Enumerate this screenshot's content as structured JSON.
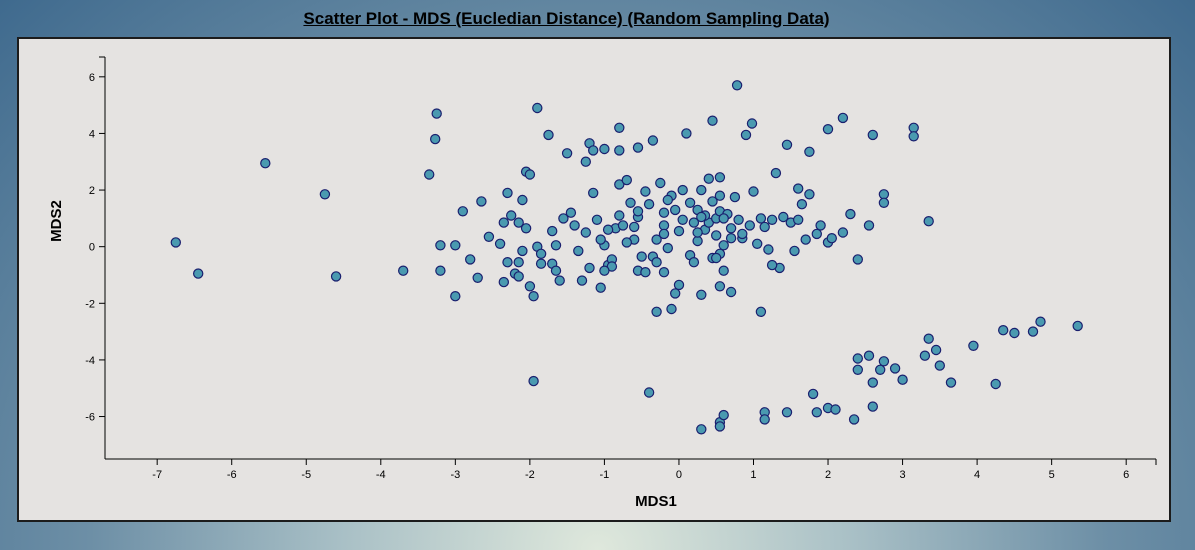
{
  "chart_data": {
    "type": "scatter",
    "title": "Scatter Plot - MDS (Eucledian Distance) (Random Sampling Data)",
    "xlabel": "MDS1",
    "ylabel": "MDS2",
    "xlim": [
      -7.7,
      6.4
    ],
    "ylim": [
      -7.5,
      6.7
    ],
    "xticks": [
      -7,
      -6,
      -5,
      -4,
      -3,
      -2,
      -1,
      0,
      1,
      2,
      3,
      4,
      5,
      6
    ],
    "yticks": [
      -6,
      -4,
      -2,
      0,
      2,
      4,
      6
    ],
    "grid": false,
    "marker_fill": "#4a9ab0",
    "marker_stroke": "#1a1f6e",
    "points": [
      [
        -6.75,
        0.15
      ],
      [
        -6.45,
        -0.95
      ],
      [
        -5.55,
        2.95
      ],
      [
        -4.75,
        1.85
      ],
      [
        -4.6,
        -1.05
      ],
      [
        -3.7,
        -0.85
      ],
      [
        -3.35,
        2.55
      ],
      [
        -3.25,
        4.7
      ],
      [
        -3.27,
        3.8
      ],
      [
        -3.2,
        0.05
      ],
      [
        -3.2,
        -0.85
      ],
      [
        -3.0,
        0.05
      ],
      [
        -3.0,
        -1.75
      ],
      [
        -2.9,
        1.25
      ],
      [
        -2.8,
        -0.45
      ],
      [
        -2.65,
        1.6
      ],
      [
        -2.7,
        -1.1
      ],
      [
        -2.55,
        0.35
      ],
      [
        -2.4,
        0.1
      ],
      [
        -2.35,
        0.85
      ],
      [
        -2.3,
        1.9
      ],
      [
        -2.25,
        1.1
      ],
      [
        -2.3,
        -0.55
      ],
      [
        -2.35,
        -1.25
      ],
      [
        -2.2,
        -0.95
      ],
      [
        -2.15,
        -0.55
      ],
      [
        -2.15,
        -1.05
      ],
      [
        -2.15,
        0.85
      ],
      [
        -2.1,
        1.65
      ],
      [
        -2.05,
        2.65
      ],
      [
        -2.0,
        2.55
      ],
      [
        -2.1,
        -0.15
      ],
      [
        -2.05,
        0.65
      ],
      [
        -2.0,
        -1.4
      ],
      [
        -1.95,
        -1.75
      ],
      [
        -1.95,
        -4.75
      ],
      [
        -1.9,
        4.9
      ],
      [
        -1.9,
        0.0
      ],
      [
        -1.85,
        -0.25
      ],
      [
        -1.85,
        -0.6
      ],
      [
        -1.75,
        3.95
      ],
      [
        -1.7,
        0.55
      ],
      [
        -1.7,
        -0.6
      ],
      [
        -1.65,
        -0.85
      ],
      [
        -1.65,
        0.05
      ],
      [
        -1.6,
        -1.2
      ],
      [
        -1.55,
        1.0
      ],
      [
        -1.5,
        3.3
      ],
      [
        -1.45,
        1.2
      ],
      [
        -1.4,
        0.75
      ],
      [
        -1.35,
        -0.15
      ],
      [
        -1.3,
        -1.2
      ],
      [
        -1.25,
        0.5
      ],
      [
        -1.2,
        -0.75
      ],
      [
        -1.25,
        3.0
      ],
      [
        -1.2,
        3.65
      ],
      [
        -1.15,
        3.4
      ],
      [
        -1.15,
        1.9
      ],
      [
        -1.1,
        0.95
      ],
      [
        -1.05,
        -1.45
      ],
      [
        -1.0,
        0.05
      ],
      [
        -1.0,
        3.45
      ],
      [
        -0.95,
        -0.65
      ],
      [
        -0.9,
        -0.45
      ],
      [
        -0.85,
        0.65
      ],
      [
        -0.8,
        4.2
      ],
      [
        -0.8,
        3.4
      ],
      [
        -0.8,
        2.2
      ],
      [
        -0.8,
        1.1
      ],
      [
        -0.75,
        0.75
      ],
      [
        -0.7,
        2.35
      ],
      [
        -0.65,
        1.55
      ],
      [
        -0.6,
        0.25
      ],
      [
        -0.55,
        3.5
      ],
      [
        -0.55,
        1.05
      ],
      [
        -0.5,
        -0.35
      ],
      [
        -0.55,
        -0.85
      ],
      [
        -0.45,
        1.95
      ],
      [
        -0.45,
        -0.9
      ],
      [
        -0.4,
        1.5
      ],
      [
        -0.35,
        3.75
      ],
      [
        -0.35,
        -0.35
      ],
      [
        -0.3,
        0.25
      ],
      [
        -0.3,
        -0.55
      ],
      [
        -0.3,
        -2.3
      ],
      [
        -0.4,
        -5.15
      ],
      [
        -0.25,
        2.25
      ],
      [
        -0.2,
        0.75
      ],
      [
        -0.2,
        1.2
      ],
      [
        -0.2,
        -0.9
      ],
      [
        -0.15,
        -0.05
      ],
      [
        -0.1,
        1.8
      ],
      [
        -0.05,
        1.3
      ],
      [
        -0.1,
        -2.2
      ],
      [
        -0.05,
        -1.65
      ],
      [
        0.0,
        -1.35
      ],
      [
        0.05,
        0.95
      ],
      [
        0.0,
        0.55
      ],
      [
        0.05,
        2.0
      ],
      [
        0.1,
        4.0
      ],
      [
        0.15,
        -0.3
      ],
      [
        0.2,
        0.85
      ],
      [
        0.2,
        -0.55
      ],
      [
        0.25,
        0.2
      ],
      [
        0.25,
        1.3
      ],
      [
        0.3,
        2.0
      ],
      [
        0.3,
        -1.7
      ],
      [
        0.35,
        0.6
      ],
      [
        0.4,
        0.85
      ],
      [
        0.4,
        2.4
      ],
      [
        0.45,
        4.45
      ],
      [
        0.45,
        1.6
      ],
      [
        0.45,
        -0.4
      ],
      [
        0.5,
        1.0
      ],
      [
        0.5,
        0.4
      ],
      [
        0.55,
        2.45
      ],
      [
        0.55,
        1.8
      ],
      [
        0.55,
        1.25
      ],
      [
        0.55,
        -0.25
      ],
      [
        0.6,
        -0.85
      ],
      [
        0.6,
        0.05
      ],
      [
        0.65,
        1.15
      ],
      [
        0.7,
        0.65
      ],
      [
        0.7,
        0.3
      ],
      [
        0.75,
        1.75
      ],
      [
        0.78,
        5.7
      ],
      [
        0.8,
        0.95
      ],
      [
        0.85,
        0.3
      ],
      [
        0.9,
        3.95
      ],
      [
        0.95,
        0.75
      ],
      [
        0.98,
        4.35
      ],
      [
        1.0,
        1.95
      ],
      [
        1.05,
        0.1
      ],
      [
        1.1,
        1.0
      ],
      [
        1.1,
        -2.3
      ],
      [
        1.2,
        -0.1
      ],
      [
        1.25,
        0.95
      ],
      [
        1.3,
        2.6
      ],
      [
        1.35,
        -0.75
      ],
      [
        1.4,
        1.05
      ],
      [
        1.45,
        3.6
      ],
      [
        1.5,
        0.85
      ],
      [
        1.55,
        -0.15
      ],
      [
        1.6,
        2.05
      ],
      [
        1.6,
        0.95
      ],
      [
        1.65,
        1.5
      ],
      [
        1.7,
        0.25
      ],
      [
        1.75,
        1.85
      ],
      [
        1.75,
        3.35
      ],
      [
        1.85,
        0.45
      ],
      [
        1.9,
        0.75
      ],
      [
        2.0,
        0.15
      ],
      [
        2.05,
        0.3
      ],
      [
        2.0,
        4.15
      ],
      [
        2.2,
        0.5
      ],
      [
        2.2,
        4.55
      ],
      [
        2.3,
        1.15
      ],
      [
        2.4,
        -0.45
      ],
      [
        2.55,
        0.75
      ],
      [
        2.6,
        3.95
      ],
      [
        2.75,
        1.85
      ],
      [
        2.75,
        1.55
      ],
      [
        3.15,
        4.2
      ],
      [
        3.15,
        3.9
      ],
      [
        3.35,
        0.9
      ],
      [
        0.6,
        1.0
      ],
      [
        0.5,
        -0.4
      ],
      [
        0.7,
        -1.6
      ],
      [
        0.55,
        -1.4
      ],
      [
        0.85,
        0.45
      ],
      [
        1.15,
        0.7
      ],
      [
        1.25,
        -0.65
      ],
      [
        0.35,
        1.1
      ],
      [
        0.25,
        0.5
      ],
      [
        -0.15,
        1.65
      ],
      [
        -0.6,
        0.7
      ],
      [
        -0.55,
        1.25
      ],
      [
        -0.7,
        0.15
      ],
      [
        -0.9,
        -0.7
      ],
      [
        -1.0,
        -0.85
      ],
      [
        -1.05,
        0.25
      ],
      [
        -0.95,
        0.6
      ],
      [
        -0.2,
        0.45
      ],
      [
        0.15,
        1.55
      ],
      [
        0.3,
        1.05
      ],
      [
        1.8,
        -5.2
      ],
      [
        1.85,
        -5.85
      ],
      [
        2.0,
        -5.7
      ],
      [
        2.1,
        -5.75
      ],
      [
        2.35,
        -6.1
      ],
      [
        2.4,
        -4.35
      ],
      [
        2.4,
        -3.95
      ],
      [
        2.55,
        -3.85
      ],
      [
        2.6,
        -4.8
      ],
      [
        2.6,
        -5.65
      ],
      [
        2.7,
        -4.35
      ],
      [
        2.75,
        -4.05
      ],
      [
        2.9,
        -4.3
      ],
      [
        3.0,
        -4.7
      ],
      [
        3.3,
        -3.85
      ],
      [
        3.35,
        -3.25
      ],
      [
        3.45,
        -3.65
      ],
      [
        3.5,
        -4.2
      ],
      [
        3.65,
        -4.8
      ],
      [
        3.95,
        -3.5
      ],
      [
        4.25,
        -4.85
      ],
      [
        4.35,
        -2.95
      ],
      [
        4.5,
        -3.05
      ],
      [
        4.75,
        -3.0
      ],
      [
        4.85,
        -2.65
      ],
      [
        5.35,
        -2.8
      ],
      [
        0.3,
        -6.45
      ],
      [
        0.55,
        -6.2
      ],
      [
        0.55,
        -6.35
      ],
      [
        0.6,
        -5.95
      ],
      [
        1.15,
        -5.85
      ],
      [
        1.15,
        -6.1
      ],
      [
        1.45,
        -5.85
      ]
    ]
  }
}
